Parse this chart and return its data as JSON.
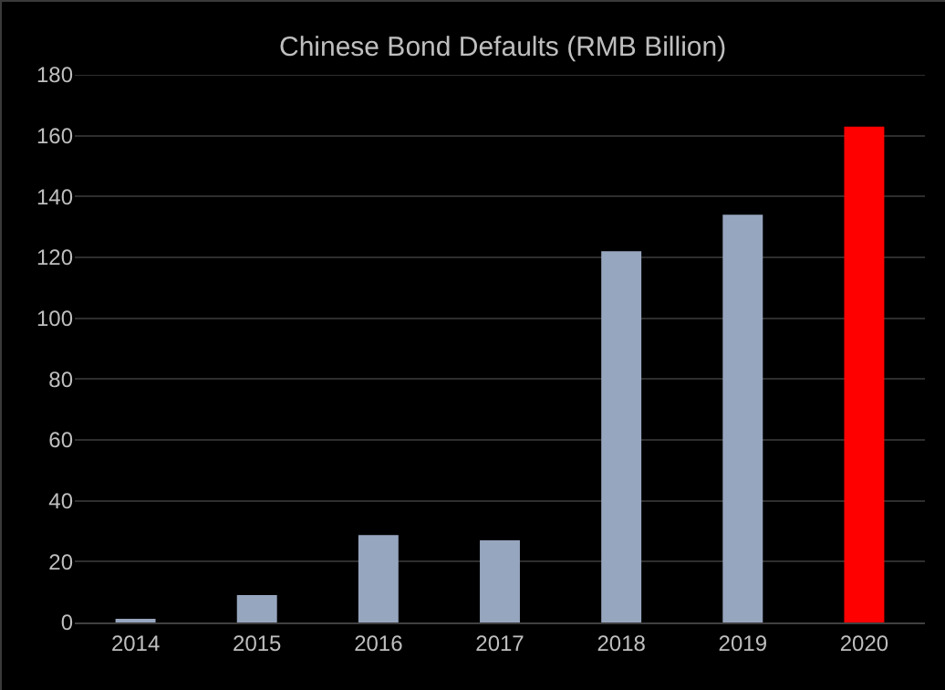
{
  "chart_data": {
    "type": "bar",
    "title": "Chinese Bond Defaults (RMB Billion)",
    "categories": [
      "2014",
      "2015",
      "2016",
      "2017",
      "2018",
      "2019",
      "2020"
    ],
    "values": [
      1,
      9,
      28.7,
      27,
      122,
      134,
      163
    ],
    "colors": [
      "#97a6bf",
      "#97a6bf",
      "#97a6bf",
      "#97a6bf",
      "#97a6bf",
      "#97a6bf",
      "#ff0000"
    ],
    "ylim": [
      0,
      180
    ],
    "yticks": [
      0,
      20,
      40,
      60,
      80,
      100,
      120,
      140,
      160,
      180
    ],
    "grid": "y"
  }
}
